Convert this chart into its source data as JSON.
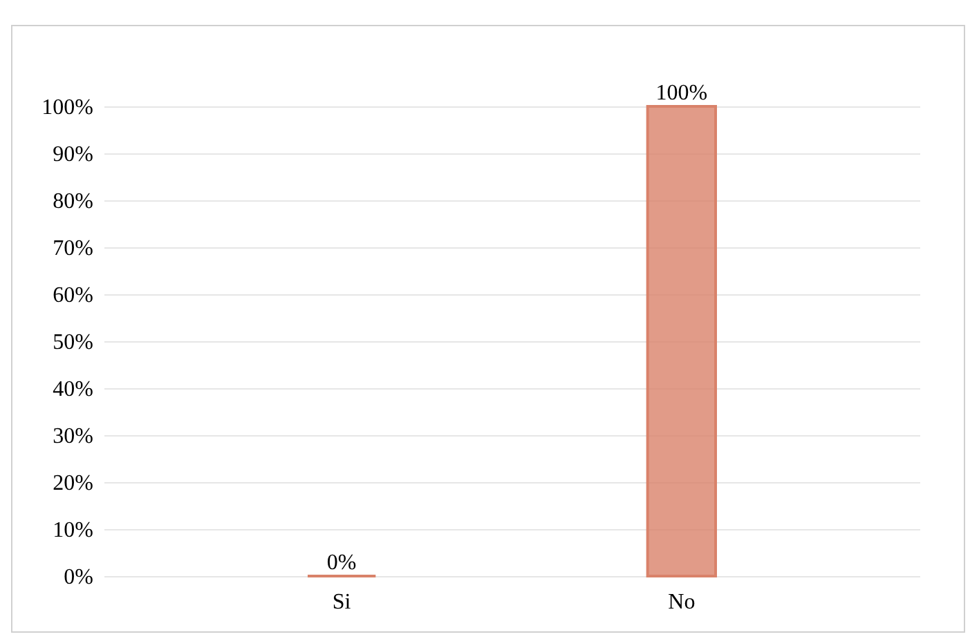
{
  "chart_data": {
    "type": "bar",
    "categories": [
      "Si",
      "No"
    ],
    "values": [
      0,
      100
    ],
    "color": "#d9826a",
    "ylim": [
      0,
      100
    ],
    "yticks": [
      {
        "value": 0,
        "label": "0%"
      },
      {
        "value": 10,
        "label": "10%"
      },
      {
        "value": 20,
        "label": "20%"
      },
      {
        "value": 30,
        "label": "30%"
      },
      {
        "value": 40,
        "label": "40%"
      },
      {
        "value": 50,
        "label": "50%"
      },
      {
        "value": 60,
        "label": "60%"
      },
      {
        "value": 70,
        "label": "70%"
      },
      {
        "value": 80,
        "label": "80%"
      },
      {
        "value": 90,
        "label": "90%"
      },
      {
        "value": 100,
        "label": "100%"
      }
    ],
    "grid": "y",
    "value_labels": [
      "0%",
      "100%"
    ]
  }
}
